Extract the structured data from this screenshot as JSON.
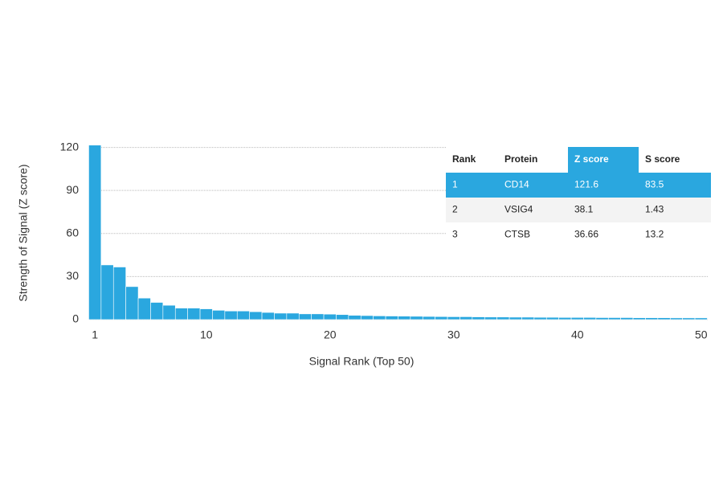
{
  "chart_data": {
    "type": "bar",
    "x_label": "Signal Rank (Top 50)",
    "y_label": "Strength of Signal (Z score)",
    "x": [
      1,
      2,
      3,
      4,
      5,
      6,
      7,
      8,
      9,
      10,
      11,
      12,
      13,
      14,
      15,
      16,
      17,
      18,
      19,
      20,
      21,
      22,
      23,
      24,
      25,
      26,
      27,
      28,
      29,
      30,
      31,
      32,
      33,
      34,
      35,
      36,
      37,
      38,
      39,
      40,
      41,
      42,
      43,
      44,
      45,
      46,
      47,
      48,
      49,
      50
    ],
    "values": [
      121.6,
      38.1,
      36.66,
      23,
      15,
      12,
      10,
      8,
      8,
      7.5,
      6.5,
      6,
      6,
      5.5,
      5,
      4.5,
      4.5,
      4,
      4,
      3.8,
      3.5,
      3,
      2.8,
      2.6,
      2.5,
      2.4,
      2.3,
      2.2,
      2.1,
      2,
      2,
      1.9,
      1.8,
      1.8,
      1.7,
      1.7,
      1.6,
      1.6,
      1.5,
      1.5,
      1.5,
      1.4,
      1.4,
      1.4,
      1.3,
      1.3,
      1.3,
      1.2,
      1.2,
      1.2
    ],
    "color": "#2aa7df",
    "xlim": [
      0.6,
      50.6
    ],
    "xticks": [
      1,
      10,
      20,
      30,
      40,
      50
    ],
    "ylim": [
      0,
      122
    ],
    "yticks": [
      0,
      30,
      60,
      90,
      120
    ],
    "grid": true,
    "table": {
      "columns": [
        "Rank",
        "Protein",
        "Z score",
        "S score"
      ],
      "rows": [
        [
          1,
          "CD14",
          121.6,
          83.5
        ],
        [
          2,
          "VSIG4",
          38.1,
          1.43
        ],
        [
          3,
          "CTSB",
          36.66,
          13.2
        ]
      ]
    }
  }
}
